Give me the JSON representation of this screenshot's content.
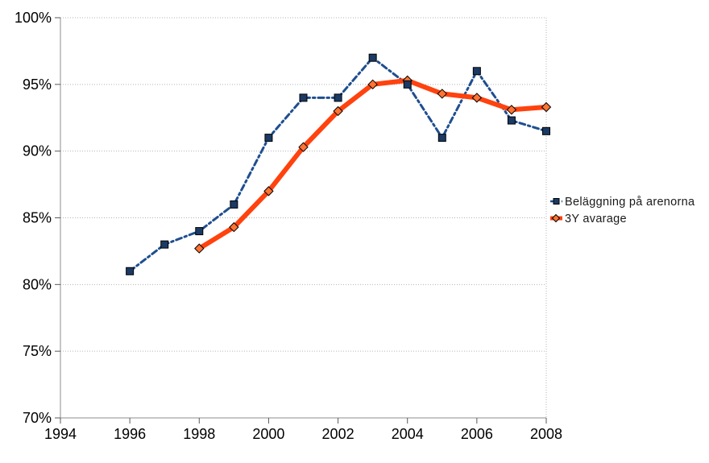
{
  "chart_data": {
    "type": "line",
    "title": "",
    "xlabel": "",
    "ylabel": "",
    "xlim": [
      1994,
      2008
    ],
    "ylim": [
      70,
      100
    ],
    "x_tick_step": 2,
    "y_tick_step": 5,
    "x_tick_labels": [
      "1994",
      "1996",
      "1998",
      "2000",
      "2002",
      "2004",
      "2006",
      "2008"
    ],
    "y_tick_labels": [
      "70%",
      "75%",
      "80%",
      "85%",
      "90%",
      "95%",
      "100%"
    ],
    "grid": "horizontal dotted gridlines every 5%, dotted right plot border",
    "legend_position": "right-middle, no border",
    "colors": {
      "gridline": "#b3b3b3",
      "axis": "#8c8c8c",
      "tick": "#595959",
      "background": "#ffffff"
    },
    "series": [
      {
        "name": "Beläggning på arenorna",
        "line_color": "#1F4E8F",
        "line_style": "dash-dot",
        "line_width": 3,
        "marker": "square",
        "marker_fill": "#1B3A64",
        "marker_stroke": "#000000",
        "x": [
          1996,
          1997,
          1998,
          1999,
          2000,
          2001,
          2002,
          2003,
          2004,
          2005,
          2006,
          2007,
          2008
        ],
        "values": [
          81,
          83,
          84,
          86,
          91,
          94,
          94,
          97,
          95,
          91,
          96,
          92.3,
          91.5
        ]
      },
      {
        "name": "3Y avarage",
        "line_color": "#FF420E",
        "line_style": "solid",
        "line_width": 6,
        "marker": "diamond",
        "marker_fill": "#FF7433",
        "marker_stroke": "#000000",
        "x": [
          1998,
          1999,
          2000,
          2001,
          2002,
          2003,
          2004,
          2005,
          2006,
          2007,
          2008
        ],
        "values": [
          82.7,
          84.3,
          87,
          90.3,
          93,
          95,
          95.3,
          94.3,
          94,
          93.1,
          93.3
        ]
      }
    ]
  }
}
